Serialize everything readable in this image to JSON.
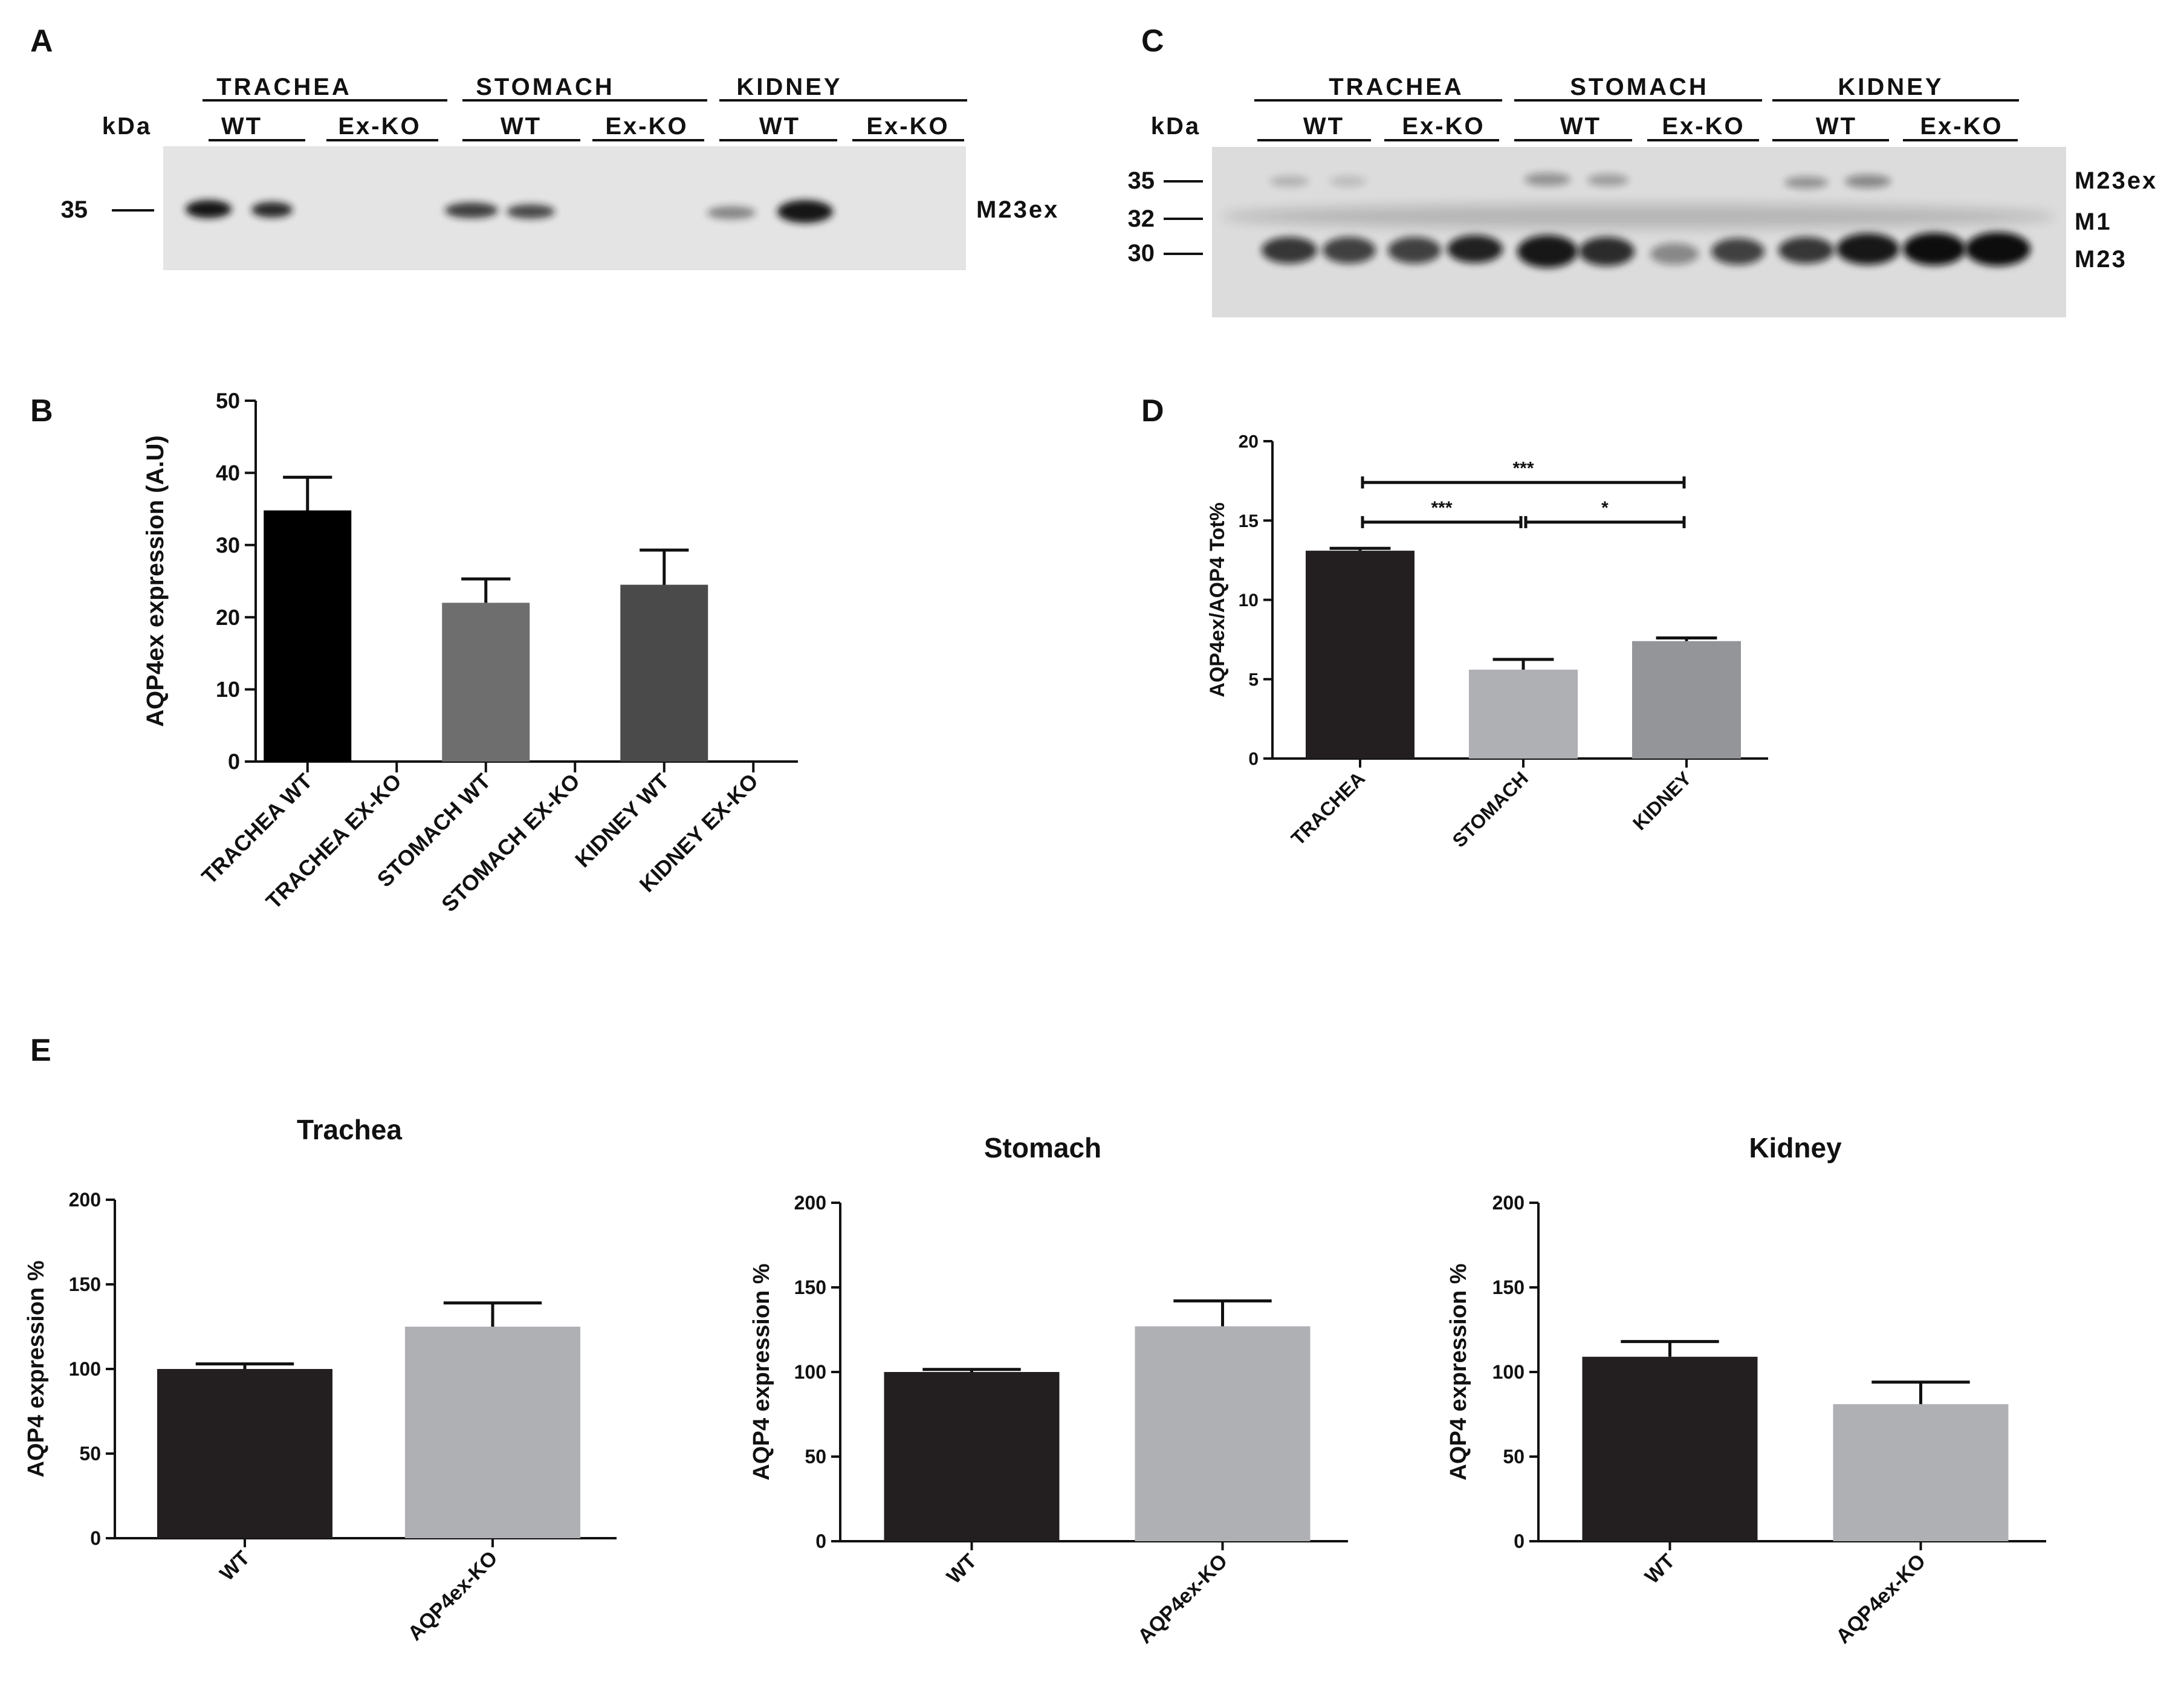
{
  "panels": {
    "A": {
      "letter": "A",
      "kda": "kDa",
      "groups": [
        "TRACHEA",
        "STOMACH",
        "KIDNEY"
      ],
      "subgroups": [
        "WT",
        "Ex-KO",
        "WT",
        "Ex-KO",
        "WT",
        "Ex-KO"
      ],
      "markers": [
        {
          "label": "35"
        }
      ],
      "band_labels": [
        "M23ex"
      ]
    },
    "C": {
      "letter": "C",
      "kda": "kDa",
      "groups": [
        "TRACHEA",
        "STOMACH",
        "KIDNEY"
      ],
      "subgroups": [
        "WT",
        "Ex-KO",
        "WT",
        "Ex-KO",
        "WT",
        "Ex-KO"
      ],
      "markers": [
        {
          "label": "35"
        },
        {
          "label": "32"
        },
        {
          "label": "30"
        }
      ],
      "band_labels": [
        "M23ex",
        "M1",
        "M23"
      ]
    },
    "B": {
      "letter": "B"
    },
    "D": {
      "letter": "D"
    },
    "E": {
      "letter": "E"
    }
  },
  "chart_data": [
    {
      "id": "B",
      "type": "bar",
      "title": "",
      "xlabel": "",
      "ylabel": "AQP4ex expression (A.U)",
      "ylim": [
        0,
        50
      ],
      "yticks": [
        0,
        10,
        20,
        30,
        40,
        50
      ],
      "categories": [
        "TRACHEA WT",
        "TRACHEA EX-KO",
        "STOMACH WT",
        "STOMACH EX-KO",
        "KIDNEY WT",
        "KIDNEY EX-KO"
      ],
      "values": [
        34.8,
        0,
        22.0,
        0,
        24.5,
        0
      ],
      "errors": [
        4.6,
        0,
        3.3,
        0,
        4.8,
        0
      ],
      "colors": [
        "#000000",
        "#000000",
        "#6e6e6e",
        "#6e6e6e",
        "#4a4a4a",
        "#4a4a4a"
      ]
    },
    {
      "id": "D",
      "type": "bar",
      "title": "",
      "xlabel": "",
      "ylabel": "AQP4ex/AQP4 Tot%",
      "ylim": [
        0,
        20
      ],
      "yticks": [
        0,
        5,
        10,
        15,
        20
      ],
      "categories": [
        "TRACHEA",
        "STOMACH",
        "KIDNEY"
      ],
      "values": [
        13.1,
        5.6,
        7.4
      ],
      "errors": [
        0.15,
        0.65,
        0.2
      ],
      "colors": [
        "#231f20",
        "#afb0b4",
        "#949599"
      ],
      "significance": [
        {
          "from": 0,
          "to": 2,
          "label": "***",
          "y": 17.4
        },
        {
          "from": 0,
          "to": 1,
          "label": "***",
          "y": 14.9
        },
        {
          "from": 1,
          "to": 2,
          "label": "*",
          "y": 14.9
        }
      ]
    },
    {
      "id": "E1",
      "type": "bar",
      "title": "Trachea",
      "xlabel": "",
      "ylabel": "AQP4 expression %",
      "ylim": [
        0,
        200
      ],
      "yticks": [
        0,
        50,
        100,
        150,
        200
      ],
      "categories": [
        "WT",
        "AQP4ex-KO"
      ],
      "values": [
        100,
        125
      ],
      "errors": [
        3,
        14
      ],
      "colors": [
        "#231f20",
        "#afb0b4"
      ]
    },
    {
      "id": "E2",
      "type": "bar",
      "title": "Stomach",
      "xlabel": "",
      "ylabel": "AQP4 expression %",
      "ylim": [
        0,
        200
      ],
      "yticks": [
        0,
        50,
        100,
        150,
        200
      ],
      "categories": [
        "WT",
        "AQP4ex-KO"
      ],
      "values": [
        100,
        127
      ],
      "errors": [
        1.5,
        15
      ],
      "colors": [
        "#231f20",
        "#afb0b4"
      ]
    },
    {
      "id": "E3",
      "type": "bar",
      "title": "Kidney",
      "xlabel": "",
      "ylabel": "AQP4 expression %",
      "ylim": [
        0,
        200
      ],
      "yticks": [
        0,
        50,
        100,
        150,
        200
      ],
      "categories": [
        "WT",
        "AQP4ex-KO"
      ],
      "values": [
        109,
        81
      ],
      "errors": [
        9,
        13
      ],
      "colors": [
        "#231f20",
        "#afb0b4"
      ]
    }
  ]
}
